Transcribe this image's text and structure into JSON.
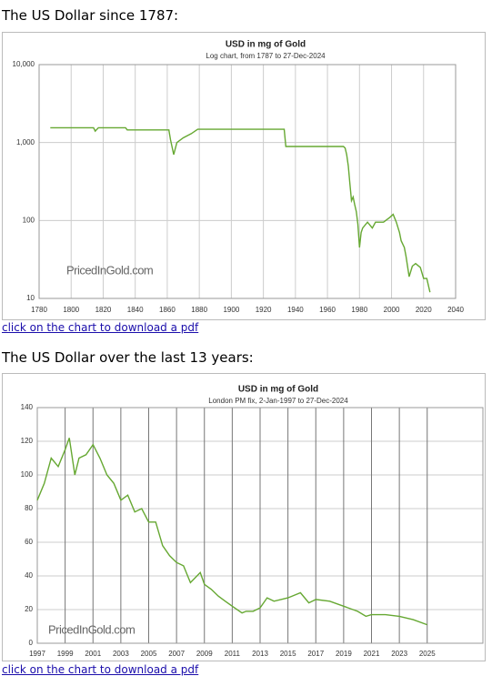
{
  "headings": [
    "The US Dollar since 1787:",
    "The US Dollar over the last 13 years:"
  ],
  "links": [
    "click on the chart to download a pdf",
    "click on the chart to download a pdf"
  ],
  "chart_data": [
    {
      "type": "line",
      "title": "USD in mg of Gold",
      "subtitle": "Log chart, from 1787 to 27-Dec-2024",
      "watermark": "PricedInGold.com",
      "log_y": true,
      "grid": true,
      "color": "#66a832",
      "xlim": [
        1780,
        2040
      ],
      "xticks": [
        1780,
        1800,
        1820,
        1840,
        1860,
        1880,
        1900,
        1920,
        1940,
        1960,
        1980,
        2000,
        2020,
        2040
      ],
      "ylim": [
        10,
        10000
      ],
      "yticks": [
        10,
        100,
        {
          "value": 1000,
          "label": "1,000"
        },
        {
          "value": 10000,
          "label": "10,000"
        }
      ],
      "x": [
        1787,
        1800,
        1814,
        1815,
        1817,
        1834,
        1835,
        1861,
        1862,
        1864,
        1866,
        1870,
        1875,
        1879,
        1900,
        1933,
        1934,
        1970,
        1971,
        1972,
        1973,
        1974,
        1975,
        1976,
        1977,
        1978,
        1979,
        1980,
        1981,
        1982,
        1985,
        1988,
        1990,
        1995,
        1999,
        2001,
        2003,
        2005,
        2006,
        2008,
        2009,
        2011,
        2013,
        2015,
        2018,
        2020,
        2022,
        2024
      ],
      "values": [
        1550,
        1550,
        1550,
        1400,
        1550,
        1550,
        1450,
        1450,
        1100,
        700,
        1000,
        1150,
        1300,
        1480,
        1480,
        1480,
        890,
        890,
        850,
        700,
        500,
        300,
        180,
        200,
        160,
        130,
        90,
        45,
        70,
        80,
        95,
        80,
        95,
        95,
        110,
        120,
        95,
        70,
        55,
        45,
        35,
        19,
        26,
        28,
        25,
        18,
        18,
        12
      ]
    },
    {
      "type": "line",
      "title": "USD in mg of Gold",
      "subtitle": "London PM fix, 2-Jan-1997 to 27-Dec-2024",
      "watermark": "PricedInGold.com",
      "log_y": false,
      "grid": true,
      "color": "#66a832",
      "xlim": [
        1997,
        2029
      ],
      "xticks": [
        1997,
        1999,
        2001,
        2003,
        2005,
        2007,
        2009,
        2011,
        2013,
        2015,
        2017,
        2019,
        2021,
        2023,
        2025
      ],
      "ylim": [
        0,
        140
      ],
      "yticks": [
        0,
        20,
        40,
        60,
        80,
        100,
        120,
        140
      ],
      "x": [
        1997,
        1997.5,
        1998,
        1998.5,
        1999,
        1999.3,
        1999.7,
        2000,
        2000.5,
        2001,
        2001.5,
        2002,
        2002.5,
        2003,
        2003.5,
        2004,
        2004.5,
        2005,
        2005.5,
        2006,
        2006.5,
        2007,
        2007.5,
        2008,
        2008.7,
        2009,
        2009.5,
        2010,
        2010.5,
        2011,
        2011.7,
        2012,
        2012.5,
        2013,
        2013.5,
        2014,
        2015,
        2015.9,
        2016.5,
        2017,
        2018,
        2019,
        2020,
        2020.6,
        2021,
        2022,
        2023,
        2024,
        2024.99
      ],
      "values": [
        85,
        95,
        110,
        105,
        115,
        122,
        100,
        110,
        112,
        118,
        110,
        100,
        95,
        85,
        88,
        78,
        80,
        72,
        72,
        58,
        52,
        48,
        46,
        36,
        42,
        35,
        32,
        28,
        25,
        22,
        18,
        19,
        19,
        21,
        27,
        25,
        27,
        30,
        24,
        26,
        25,
        22,
        19,
        16,
        17,
        17,
        16,
        14,
        11
      ]
    }
  ]
}
